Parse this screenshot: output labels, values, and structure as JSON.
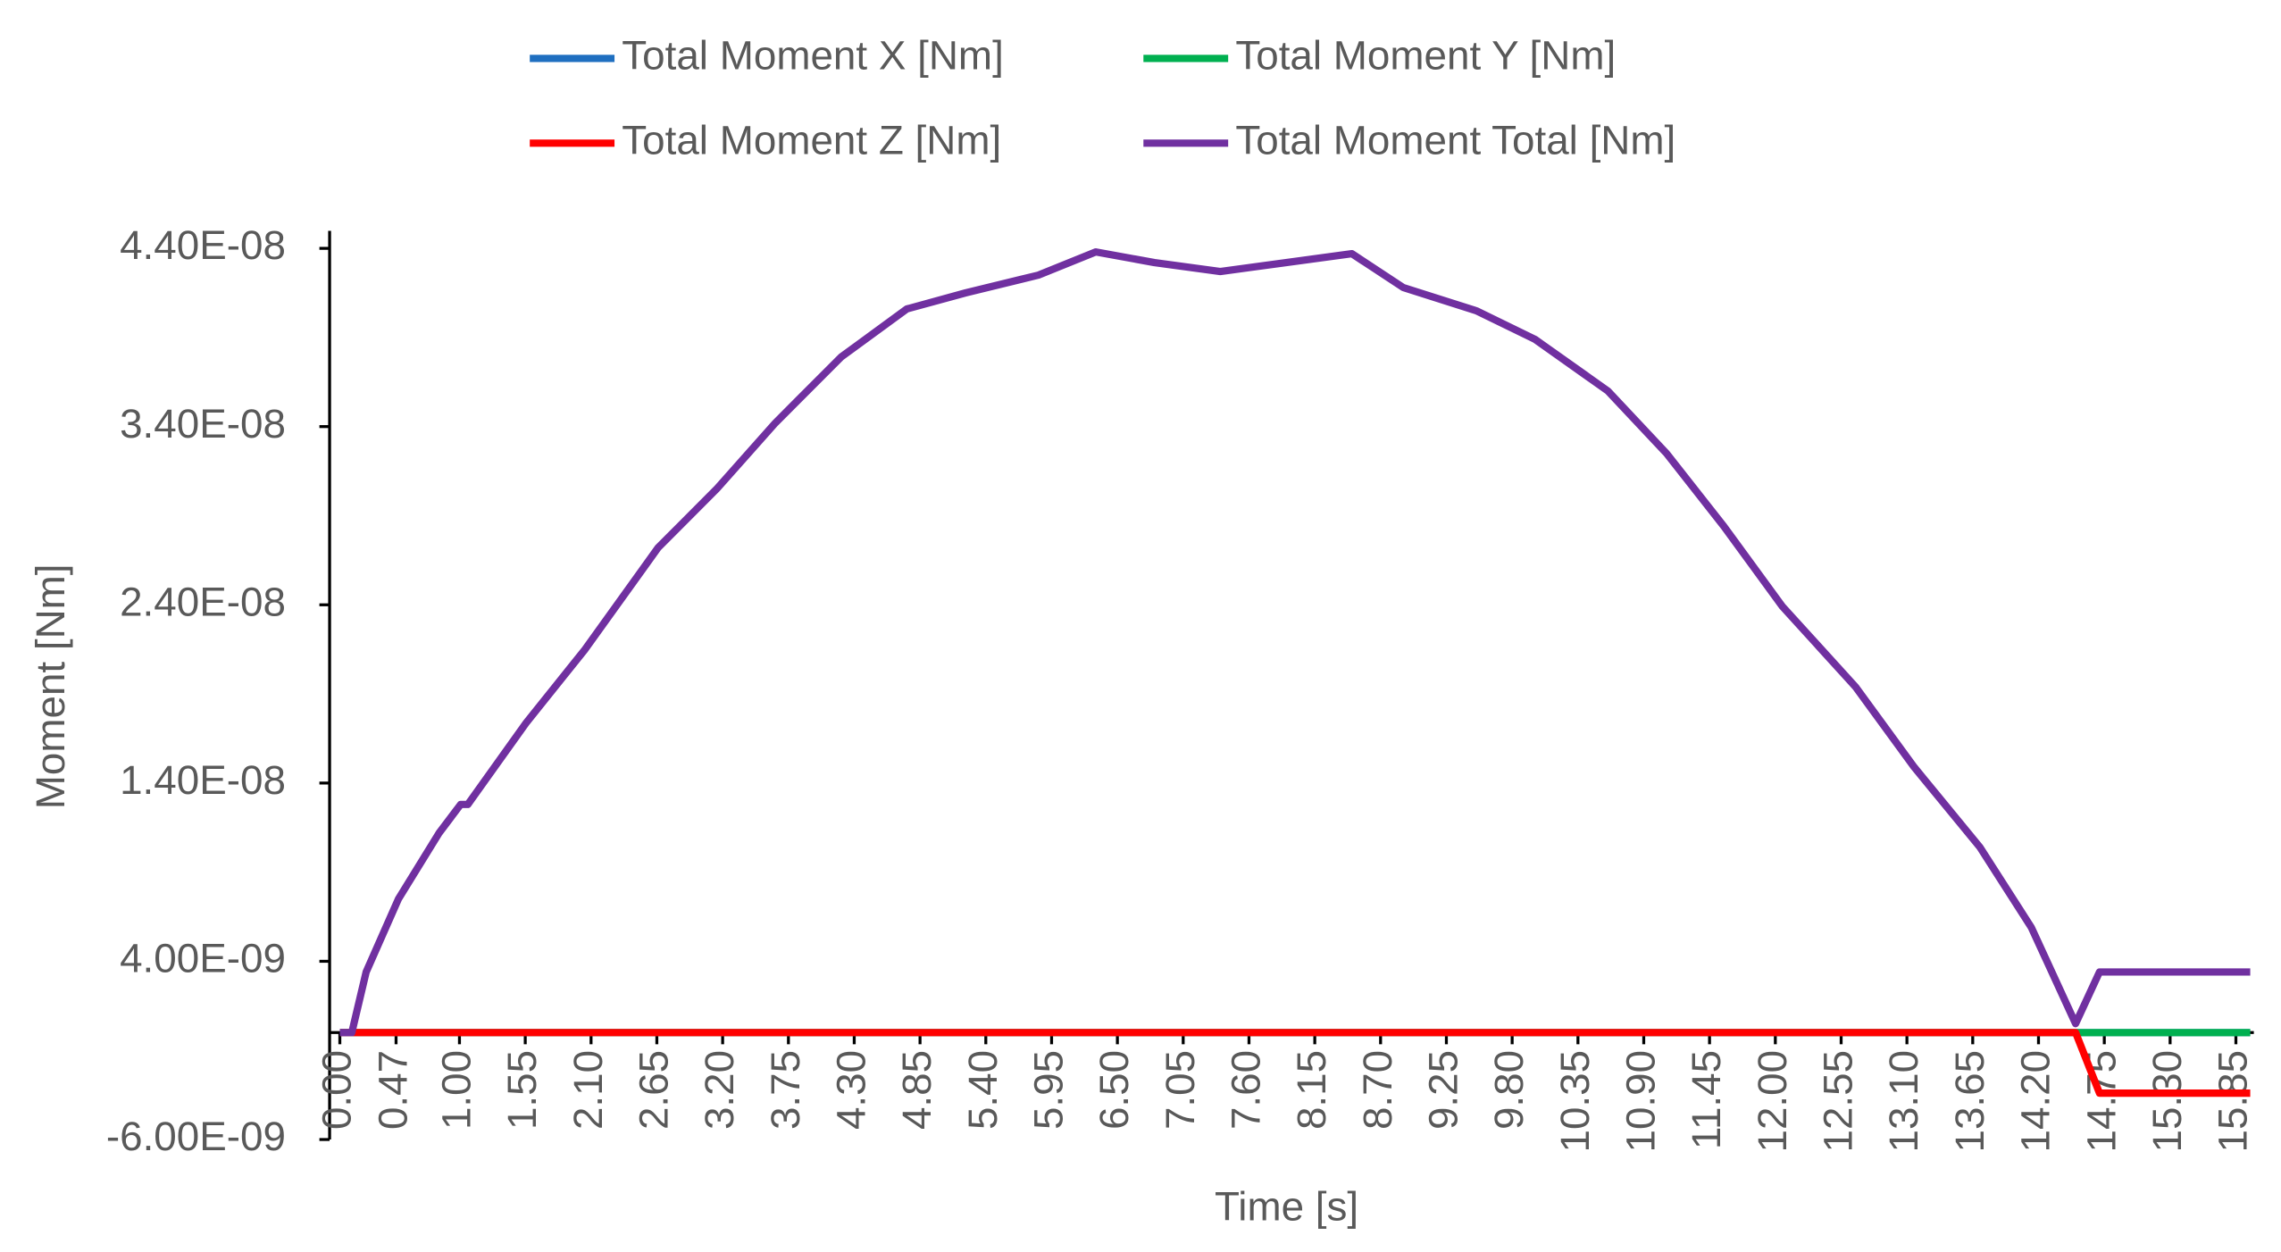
{
  "chart_data": {
    "type": "line",
    "xlabel": "Time [s]",
    "ylabel": "Moment [Nm]",
    "x": [
      0,
      0.1,
      0.22,
      0.49,
      0.83,
      1.01,
      1.07,
      1.56,
      2.05,
      2.66,
      3.15,
      3.64,
      4.19,
      4.74,
      5.23,
      5.84,
      6.32,
      6.81,
      7.36,
      7.91,
      8.46,
      8.89,
      9.5,
      9.99,
      10.6,
      11.09,
      11.57,
      12.06,
      12.67,
      13.16,
      13.71,
      14.14,
      14.51,
      14.71,
      15.97
    ],
    "series": [
      {
        "name": "Total Moment X [Nm]",
        "color": "#1f6fc0",
        "values": [
          0,
          0,
          0,
          0,
          0,
          0,
          0,
          0,
          0,
          0,
          0,
          0,
          0,
          0,
          0,
          0,
          0,
          0,
          0,
          0,
          0,
          0,
          0,
          0,
          0,
          0,
          0,
          0,
          0,
          0,
          0,
          0,
          0,
          0,
          0
        ]
      },
      {
        "name": "Total Moment Y [Nm]",
        "color": "#00b050",
        "values": [
          0,
          0,
          0,
          0,
          0,
          0,
          0,
          0,
          0,
          0,
          0,
          0,
          0,
          0,
          0,
          0,
          0,
          0,
          0,
          0,
          0,
          0,
          0,
          0,
          0,
          0,
          0,
          0,
          0,
          0,
          0,
          0,
          0,
          0,
          0
        ]
      },
      {
        "name": "Total Moment Z [Nm]",
        "color": "#ff0000",
        "values": [
          0,
          0,
          0,
          0,
          0,
          0,
          0,
          0,
          0,
          0,
          0,
          0,
          0,
          0,
          0,
          0,
          0,
          0,
          0,
          0,
          0,
          0,
          0,
          0,
          0,
          0,
          0,
          0,
          0,
          0,
          0,
          0,
          0,
          -3.4e-09,
          -3.4e-09
        ]
      },
      {
        "name": "Total Moment Total [Nm]",
        "color": "#7030a0",
        "values": [
          0,
          0,
          3.4e-09,
          7.5e-09,
          1.12e-08,
          1.28e-08,
          1.28e-08,
          1.74e-08,
          2.15e-08,
          2.72e-08,
          3.05e-08,
          3.42e-08,
          3.79e-08,
          4.06e-08,
          4.15e-08,
          4.25e-08,
          4.38e-08,
          4.32e-08,
          4.27e-08,
          4.32e-08,
          4.37e-08,
          4.18e-08,
          4.05e-08,
          3.89e-08,
          3.6e-08,
          3.25e-08,
          2.84e-08,
          2.39e-08,
          1.94e-08,
          1.49e-08,
          1.04e-08,
          5.9e-09,
          5e-10,
          3.4e-09,
          3.4e-09
        ]
      }
    ],
    "xlim": [
      0,
      16
    ],
    "xticks": [
      {
        "value": 0,
        "label": "0.00"
      },
      0.47,
      {
        "value": 1,
        "label": "1.00"
      },
      1.55,
      {
        "value": 2.1,
        "label": "2.10"
      },
      2.65,
      {
        "value": 3.2,
        "label": "3.20"
      },
      3.75,
      {
        "value": 4.3,
        "label": "4.30"
      },
      4.85,
      {
        "value": 5.4,
        "label": "5.40"
      },
      5.95,
      {
        "value": 6.5,
        "label": "6.50"
      },
      7.05,
      {
        "value": 7.6,
        "label": "7.60"
      },
      8.15,
      {
        "value": 8.7,
        "label": "8.70"
      },
      9.25,
      {
        "value": 9.8,
        "label": "9.80"
      },
      10.35,
      {
        "value": 10.9,
        "label": "10.90"
      },
      11.45,
      {
        "value": 12,
        "label": "12.00"
      },
      12.55,
      {
        "value": 13.1,
        "label": "13.10"
      },
      13.65,
      {
        "value": 14.2,
        "label": "14.20"
      },
      14.75,
      {
        "value": 15.3,
        "label": "15.30"
      },
      15.85
    ],
    "ylim": [
      -6e-09,
      4.4e-08
    ],
    "yticks": [
      {
        "value": -6e-09,
        "label": "-6.00E-09"
      },
      {
        "value": 4e-09,
        "label": "4.00E-09"
      },
      {
        "value": 1.4e-08,
        "label": "1.40E-08"
      },
      {
        "value": 2.4e-08,
        "label": "2.40E-08"
      },
      {
        "value": 3.4e-08,
        "label": "3.40E-08"
      },
      {
        "value": 4.4e-08,
        "label": "4.40E-08"
      }
    ],
    "grid": false,
    "legend": "top"
  }
}
